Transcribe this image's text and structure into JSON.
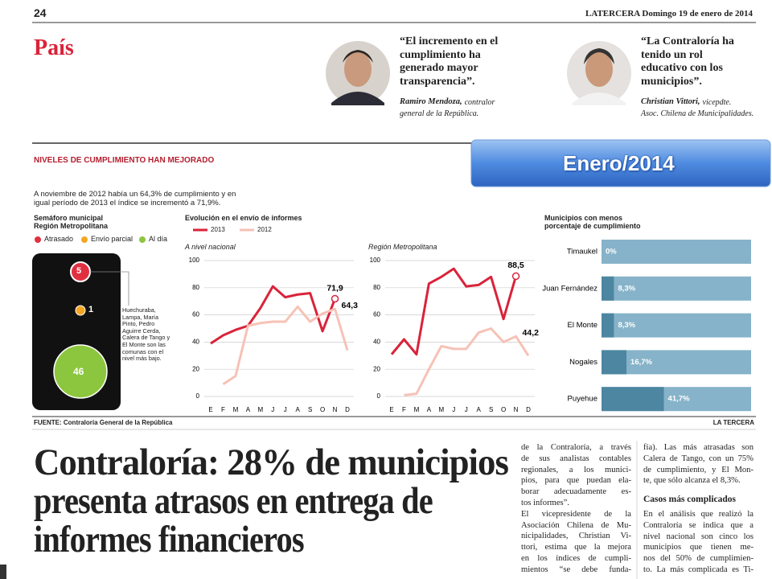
{
  "header": {
    "page_number": "24",
    "publication": "LATERCERA Domingo 19 de enero de 2014"
  },
  "section": "País",
  "quotes": [
    {
      "lines": [
        "“El incremento en el",
        "cumplimiento ha",
        "generado mayor",
        "transparencia”."
      ],
      "author": "Ramiro Mendoza,",
      "role_lines": [
        "contralor",
        "general de la República."
      ]
    },
    {
      "lines": [
        "“La Contraloría ha",
        "tenido un rol",
        "educativo con los",
        "municipios”."
      ],
      "author": "Christian Vittori,",
      "role_lines": [
        "vicepdte.",
        "Asoc. Chilena de Municipalidades."
      ]
    }
  ],
  "banner": "Enero/2014",
  "infographic": {
    "title": "NIVELES DE CUMPLIMIENTO HAN MEJORADO",
    "intro_lines": [
      "A noviembre de 2012 había un 64,3% de cumplimiento y en",
      "igual período de 2013 el índice se incrementó a 71,9%."
    ],
    "semaphore": {
      "title_lines": [
        "Semáforo municipal",
        "Región Metropolitana"
      ],
      "legend": [
        "Atrasado",
        "Envío parcial",
        "Al día"
      ],
      "counts": [
        5,
        1,
        46
      ],
      "note_lines": [
        "Huechuraba,",
        "Lampa, María",
        "Pinto, Pedro",
        "Aguirre Cerda,",
        "Calera de Tango y",
        "El Monte son las",
        "comunas con el",
        "nivel más bajo."
      ]
    },
    "evolution_title": "Evolución en el envío de informes",
    "source": "FUENTE: Contraloría General de la República",
    "credit": "LA TERCERA"
  },
  "chart_data": [
    {
      "type": "line",
      "title": "A nivel nacional",
      "categories": [
        "E",
        "F",
        "M",
        "A",
        "M",
        "J",
        "J",
        "A",
        "S",
        "O",
        "N",
        "D"
      ],
      "ylim": [
        0,
        100
      ],
      "yticks": [
        0,
        20,
        40,
        60,
        80,
        100
      ],
      "grid": true,
      "series": [
        {
          "name": "2013",
          "color": "#d9233a",
          "values": [
            39,
            45,
            49,
            52,
            65,
            81,
            73,
            75,
            76,
            48,
            71.9,
            null
          ],
          "value_labels": [
            null,
            null,
            null,
            null,
            null,
            null,
            null,
            null,
            null,
            null,
            "71,9",
            null
          ]
        },
        {
          "name": "2012",
          "color": "#f6c2b6",
          "values": [
            null,
            9,
            15,
            52,
            54,
            55,
            55,
            66,
            55,
            61,
            64.3,
            34
          ],
          "value_labels": [
            null,
            null,
            null,
            null,
            null,
            null,
            null,
            null,
            null,
            null,
            "64,3",
            null
          ]
        }
      ]
    },
    {
      "type": "line",
      "title": "Región Metropolitana",
      "categories": [
        "E",
        "F",
        "M",
        "A",
        "M",
        "J",
        "J",
        "A",
        "S",
        "O",
        "N",
        "D"
      ],
      "ylim": [
        0,
        100
      ],
      "yticks": [
        0,
        20,
        40,
        60,
        80,
        100
      ],
      "grid": true,
      "series": [
        {
          "color": "#d9233a",
          "values": [
            31,
            42,
            31,
            83,
            88,
            94,
            81,
            82,
            88,
            57,
            88.5,
            null
          ],
          "value_labels": [
            null,
            null,
            null,
            null,
            null,
            null,
            null,
            null,
            null,
            null,
            "88,5",
            null
          ]
        },
        {
          "color": "#f6c2b6",
          "values": [
            null,
            1,
            2,
            20,
            37,
            35,
            35,
            47,
            50,
            40,
            44.2,
            30
          ],
          "value_labels": [
            null,
            null,
            null,
            null,
            null,
            null,
            null,
            null,
            null,
            null,
            "44,2",
            null
          ]
        }
      ]
    },
    {
      "type": "bar",
      "title": [
        "Municipios con menos",
        "porcentaje de cumplimiento"
      ],
      "categories": [
        "Timaukel",
        "Juan Fernández",
        "El Monte",
        "Nogales",
        "Puyehue"
      ],
      "values": [
        0,
        8.3,
        8.3,
        16.7,
        41.7
      ],
      "value_labels": [
        "0%",
        "8,3%",
        "8,3%",
        "16,7%",
        "41,7%"
      ],
      "xlim": [
        0,
        100
      ],
      "color": "#4d86a1",
      "background": "#86b3c9"
    }
  ],
  "headline_lines": [
    "Contraloría: 28% de municipios",
    "presenta atrasos en entrega de",
    "informes financieros"
  ],
  "article": {
    "column1": [
      "de la Contraloría, a través",
      "de sus analistas contables",
      "regionales, a los munici-",
      "pios, para que puedan ela-",
      "borar adecuadamente es-",
      "tos informes”.",
      "El vicepresidente de la",
      "Asociación Chilena de Mu-",
      "nicipalidades, Christian Vi-",
      "ttori, estima que la mejora",
      "en los índices de cumpli-",
      "mientos “se debe funda-"
    ],
    "column2": [
      "fía). Las más atrasadas son",
      "Calera de Tango, con un 75%",
      "de cumplimiento, y El Mon-",
      "te, que sólo alcanza el 8,3%."
    ],
    "subhead": "Casos más complicados",
    "column2b": [
      "En el análisis que realizó la",
      "Contraloría se indica que a",
      "nivel nacional son cinco los",
      "municipios que tienen me-",
      "nos del 50% de cumplimien-",
      "to. La más complicada es Ti-"
    ]
  }
}
